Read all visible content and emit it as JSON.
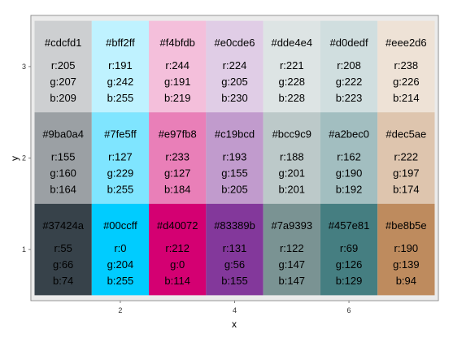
{
  "chart_data": {
    "type": "heatmap",
    "xlabel": "x",
    "ylabel": "y",
    "x_ticks": [
      2,
      4,
      6
    ],
    "y_ticks": [
      1,
      2,
      3
    ],
    "xlim": [
      0.45,
      7.55
    ],
    "ylim": [
      0.45,
      3.55
    ],
    "grid": false,
    "background": "#ebebeb",
    "tiles": [
      {
        "x": 1,
        "y": 3,
        "hex": "#cdcfd1",
        "r": 205,
        "g": 207,
        "b": 209,
        "label": "#cdcfd1",
        "r_label": "r:205",
        "g_label": "g:207",
        "b_label": "b:209"
      },
      {
        "x": 2,
        "y": 3,
        "hex": "#bff2ff",
        "r": 191,
        "g": 242,
        "b": 255,
        "label": "#bff2ff",
        "r_label": "r:191",
        "g_label": "g:242",
        "b_label": "b:255"
      },
      {
        "x": 3,
        "y": 3,
        "hex": "#f4bfdb",
        "r": 244,
        "g": 191,
        "b": 219,
        "label": "#f4bfdb",
        "r_label": "r:244",
        "g_label": "g:191",
        "b_label": "b:219"
      },
      {
        "x": 4,
        "y": 3,
        "hex": "#e0cde6",
        "r": 224,
        "g": 205,
        "b": 230,
        "label": "#e0cde6",
        "r_label": "r:224",
        "g_label": "g:205",
        "b_label": "b:230"
      },
      {
        "x": 5,
        "y": 3,
        "hex": "#dde4e4",
        "r": 221,
        "g": 228,
        "b": 228,
        "label": "#dde4e4",
        "r_label": "r:221",
        "g_label": "g:228",
        "b_label": "b:228"
      },
      {
        "x": 6,
        "y": 3,
        "hex": "#d0dedf",
        "r": 208,
        "g": 222,
        "b": 223,
        "label": "#d0dedf",
        "r_label": "r:208",
        "g_label": "g:222",
        "b_label": "b:223"
      },
      {
        "x": 7,
        "y": 3,
        "hex": "#eee2d6",
        "r": 238,
        "g": 226,
        "b": 214,
        "label": "#eee2d6",
        "r_label": "r:238",
        "g_label": "g:226",
        "b_label": "b:214"
      },
      {
        "x": 1,
        "y": 2,
        "hex": "#9ba0a4",
        "r": 155,
        "g": 160,
        "b": 164,
        "label": "#9ba0a4",
        "r_label": "r:155",
        "g_label": "g:160",
        "b_label": "b:164"
      },
      {
        "x": 2,
        "y": 2,
        "hex": "#7fe5ff",
        "r": 127,
        "g": 229,
        "b": 255,
        "label": "#7fe5ff",
        "r_label": "r:127",
        "g_label": "g:229",
        "b_label": "b:255"
      },
      {
        "x": 3,
        "y": 2,
        "hex": "#e97fb8",
        "r": 233,
        "g": 127,
        "b": 184,
        "label": "#e97fb8",
        "r_label": "r:233",
        "g_label": "g:127",
        "b_label": "b:184"
      },
      {
        "x": 4,
        "y": 2,
        "hex": "#c19bcd",
        "r": 193,
        "g": 155,
        "b": 205,
        "label": "#c19bcd",
        "r_label": "r:193",
        "g_label": "g:155",
        "b_label": "b:205"
      },
      {
        "x": 5,
        "y": 2,
        "hex": "#bcc9c9",
        "r": 188,
        "g": 201,
        "b": 201,
        "label": "#bcc9c9",
        "r_label": "r:188",
        "g_label": "g:201",
        "b_label": "b:201"
      },
      {
        "x": 6,
        "y": 2,
        "hex": "#a2bec0",
        "r": 162,
        "g": 190,
        "b": 192,
        "label": "#a2bec0",
        "r_label": "r:162",
        "g_label": "g:190",
        "b_label": "b:192"
      },
      {
        "x": 7,
        "y": 2,
        "hex": "#dec5ae",
        "r": 222,
        "g": 197,
        "b": 174,
        "label": "#dec5ae",
        "r_label": "r:222",
        "g_label": "g:197",
        "b_label": "b:174"
      },
      {
        "x": 1,
        "y": 1,
        "hex": "#37424a",
        "r": 55,
        "g": 66,
        "b": 74,
        "label": "#37424a",
        "r_label": "r:55",
        "g_label": "g:66",
        "b_label": "b:74"
      },
      {
        "x": 2,
        "y": 1,
        "hex": "#00ccff",
        "r": 0,
        "g": 204,
        "b": 255,
        "label": "#00ccff",
        "r_label": "r:0",
        "g_label": "g:204",
        "b_label": "b:255"
      },
      {
        "x": 3,
        "y": 1,
        "hex": "#d40072",
        "r": 212,
        "g": 0,
        "b": 114,
        "label": "#d40072",
        "r_label": "r:212",
        "g_label": "g:0",
        "b_label": "b:114"
      },
      {
        "x": 4,
        "y": 1,
        "hex": "#83389b",
        "r": 131,
        "g": 56,
        "b": 155,
        "label": "#83389b",
        "r_label": "r:131",
        "g_label": "g:56",
        "b_label": "b:155"
      },
      {
        "x": 5,
        "y": 1,
        "hex": "#7a9393",
        "r": 122,
        "g": 147,
        "b": 147,
        "label": "#7a9393",
        "r_label": "r:122",
        "g_label": "g:147",
        "b_label": "b:147"
      },
      {
        "x": 6,
        "y": 1,
        "hex": "#457e81",
        "r": 69,
        "g": 126,
        "b": 129,
        "label": "#457e81",
        "r_label": "r:69",
        "g_label": "g:126",
        "b_label": "b:129"
      },
      {
        "x": 7,
        "y": 1,
        "hex": "#be8b5e",
        "r": 190,
        "g": 139,
        "b": 94,
        "label": "#be8b5e",
        "r_label": "r:190",
        "g_label": "g:139",
        "b_label": "b:94"
      }
    ]
  }
}
